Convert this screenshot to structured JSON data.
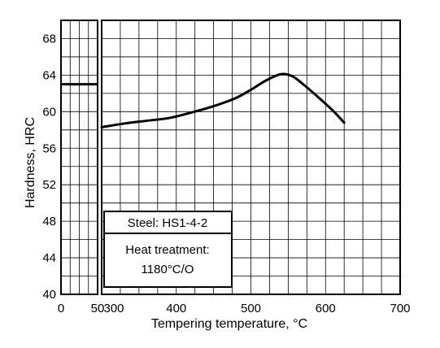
{
  "chart_data": {
    "type": "line",
    "ylabel": "Hardness, HRC",
    "xlabel": "Tempering temperature, °C",
    "ylim": [
      40,
      70
    ],
    "y_ticks": [
      "40",
      "44",
      "48",
      "52",
      "56",
      "60",
      "64",
      "68"
    ],
    "left_panel": {
      "xlim": [
        0,
        50
      ],
      "x_ticks": [
        "0",
        "50"
      ],
      "reference_line": {
        "x": [
          0,
          50
        ],
        "y": [
          63,
          63
        ]
      }
    },
    "main_panel": {
      "xlim": [
        300,
        700
      ],
      "x_ticks": [
        "300",
        "400",
        "500",
        "600",
        "700"
      ],
      "x": [
        300,
        330,
        360,
        390,
        420,
        450,
        480,
        500,
        520,
        540,
        555,
        570,
        590,
        610,
        625
      ],
      "y": [
        58.3,
        58.7,
        59.0,
        59.3,
        59.9,
        60.6,
        61.5,
        62.4,
        63.4,
        64.1,
        63.9,
        63.0,
        61.6,
        60.1,
        58.8
      ]
    },
    "grid": true,
    "legend_box": {
      "steel": "Steel: HS1-4-2",
      "treatment_line1": "Heat treatment:",
      "treatment_line2": "1180°C/O"
    }
  }
}
